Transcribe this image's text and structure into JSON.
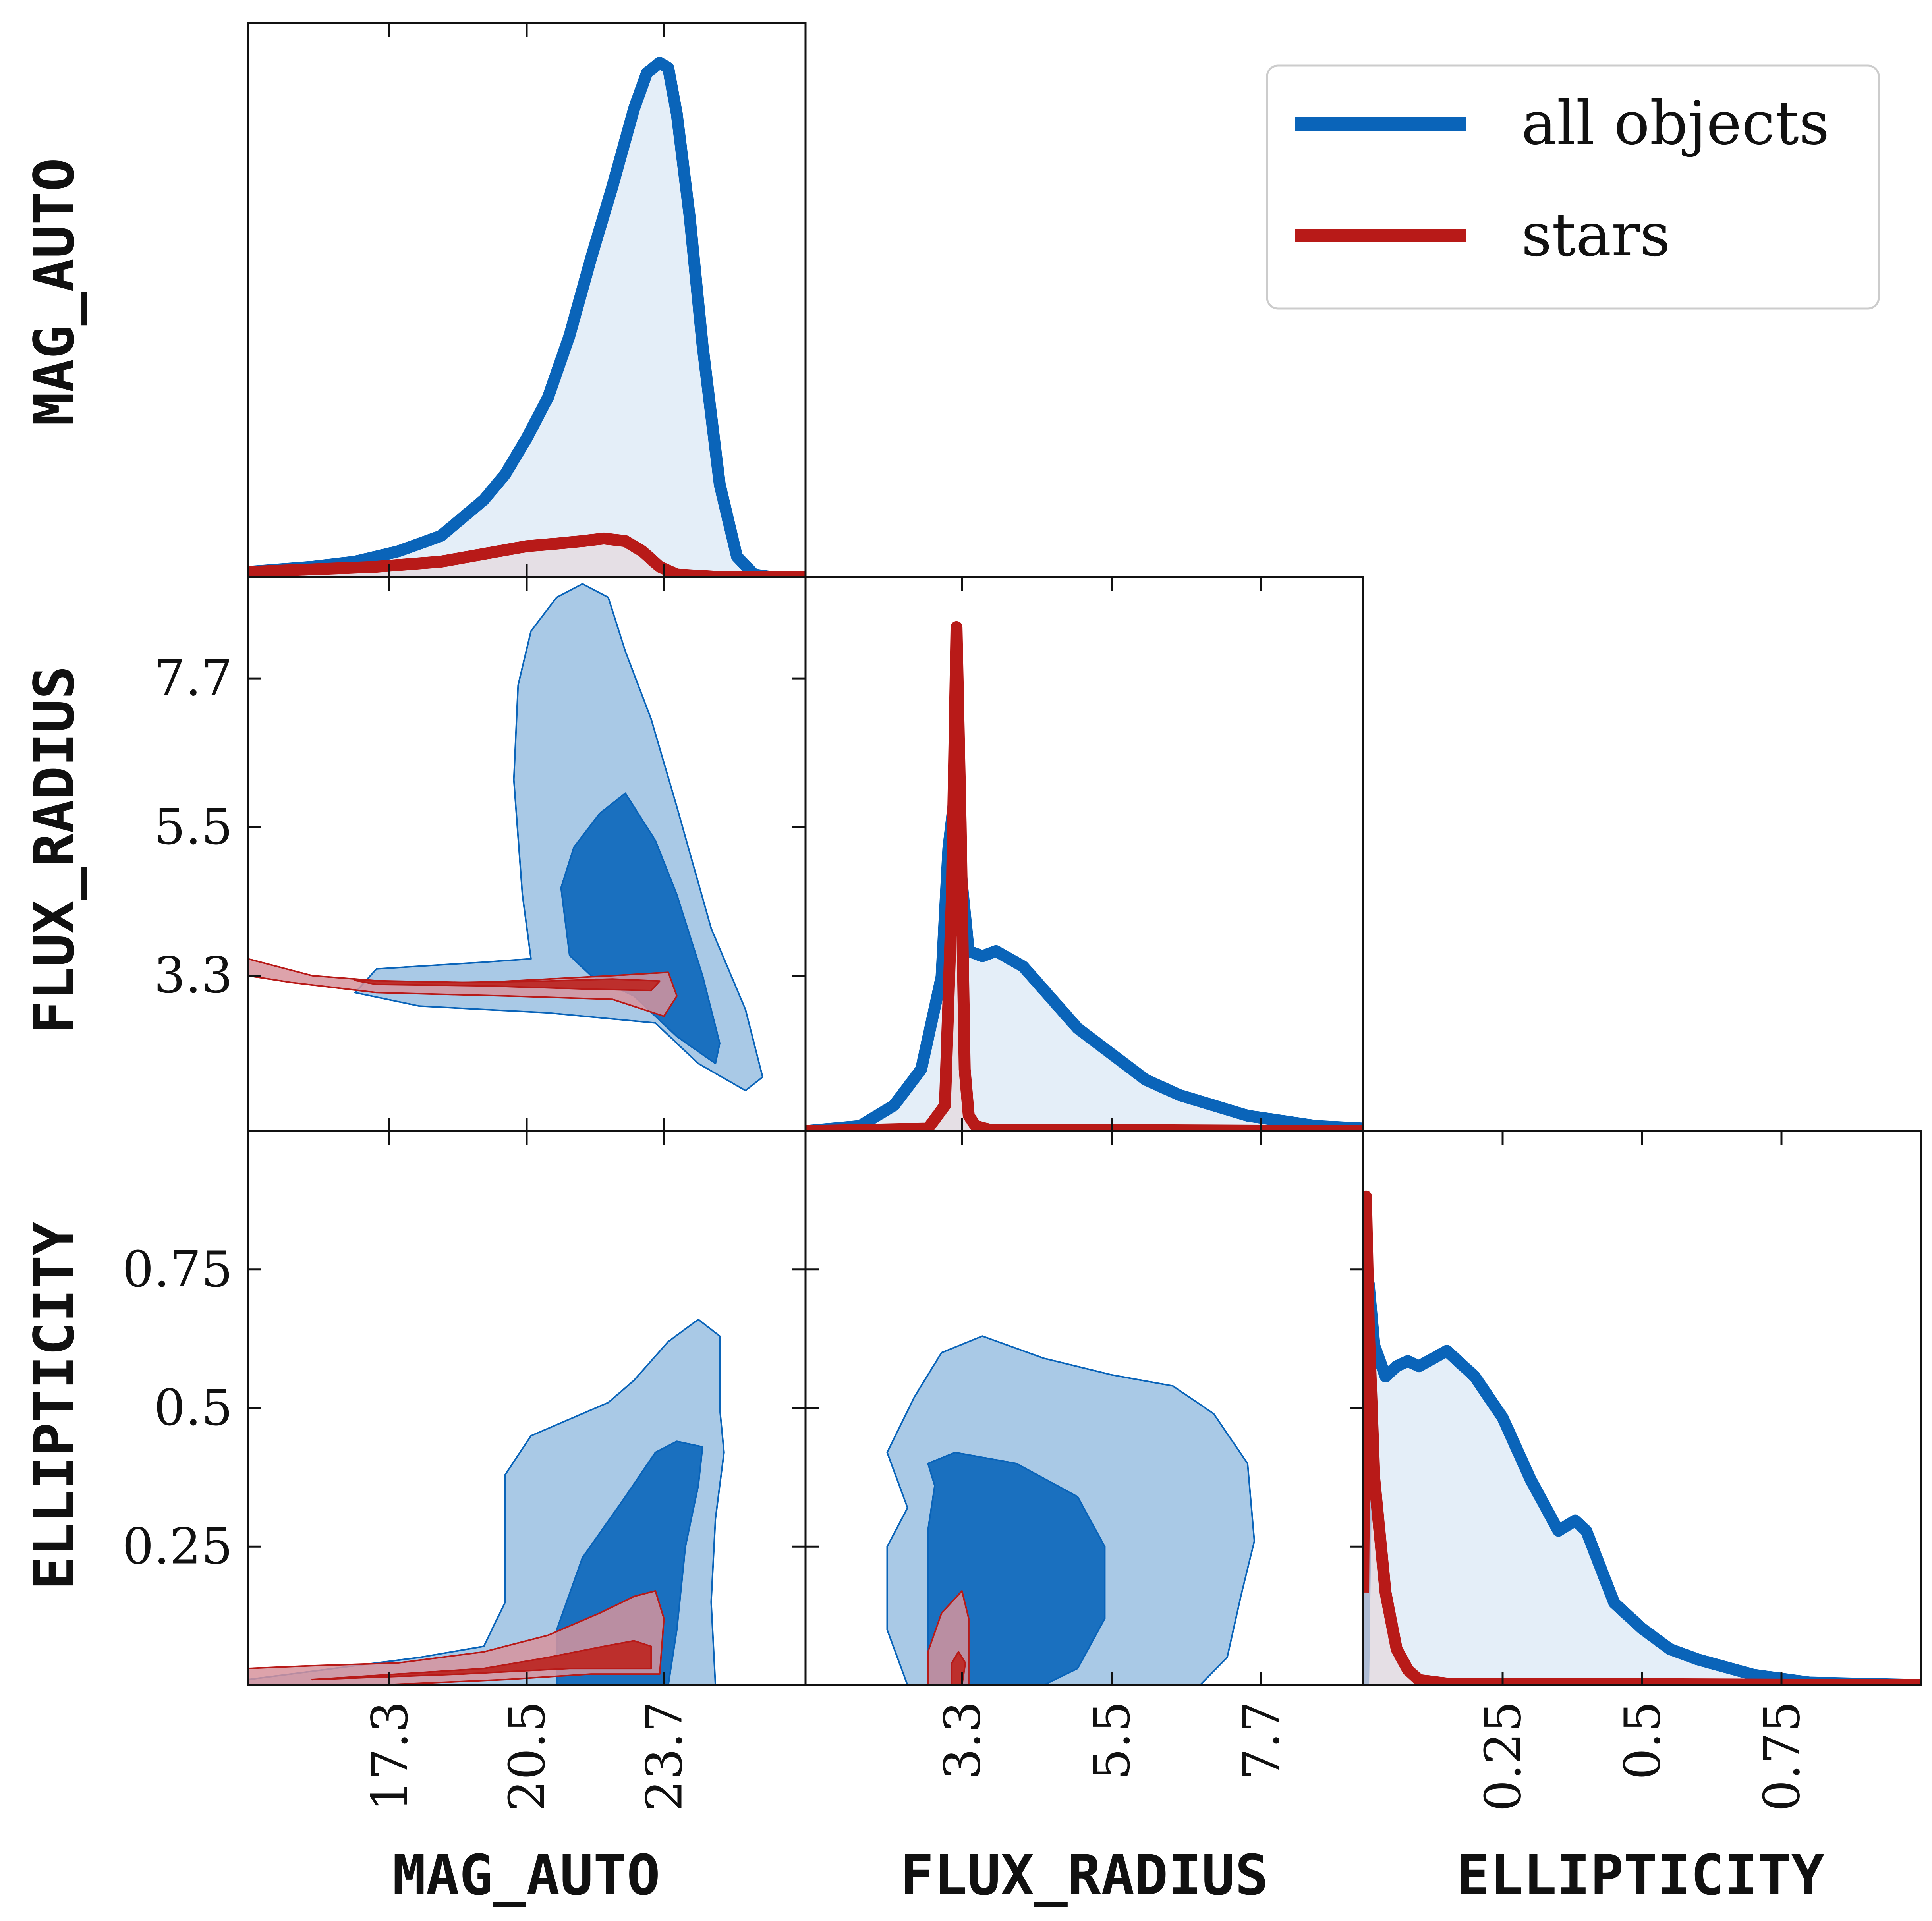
{
  "figure_type": "corner-plot",
  "colors": {
    "all_objects": "#0a64b9",
    "all_objects_fill_light": "#e4eef8",
    "all_objects_contour_outer": "#a9c9e6",
    "all_objects_contour_inner": "#1a70bf",
    "stars": "#b81a18",
    "stars_fill_light": "#e6d9df",
    "stars_contour_outer": "#d7939c",
    "stars_contour_inner": "#bd2f2c",
    "frame": "#111111"
  },
  "legend": {
    "placement": "top-right",
    "entries": [
      {
        "label": "all objects",
        "color_key": "all_objects"
      },
      {
        "label": "stars",
        "color_key": "stars"
      }
    ]
  },
  "axes_labels": {
    "mag_auto": "MAG_AUTO",
    "flux_radius": "FLUX_RADIUS",
    "ellipticity": "ELLIPTICITY"
  },
  "chart_data": {
    "type": "corner",
    "variables": [
      "MAG_AUTO",
      "FLUX_RADIUS",
      "ELLIPTICITY"
    ],
    "ranges": {
      "MAG_AUTO": [
        14.0,
        27.0
      ],
      "FLUX_RADIUS": [
        1.0,
        9.2
      ],
      "ELLIPTICITY": [
        0.0,
        1.0
      ]
    },
    "ticks": {
      "MAG_AUTO": {
        "values": [
          17.3,
          20.5,
          23.7
        ],
        "labels": [
          "17.3",
          "20.5",
          "23.7"
        ]
      },
      "FLUX_RADIUS": {
        "values": [
          3.3,
          5.5,
          7.7
        ],
        "labels": [
          "3.3",
          "5.5",
          "7.7"
        ]
      },
      "ELLIPTICITY": {
        "values": [
          0.25,
          0.5,
          0.75
        ],
        "labels": [
          "0.25",
          "0.5",
          "0.75"
        ]
      }
    },
    "marginals": {
      "MAG_AUTO": {
        "all objects": {
          "x": [
            14.0,
            15.5,
            16.5,
            17.5,
            18.5,
            19.5,
            20.0,
            20.5,
            21.0,
            21.5,
            22.0,
            22.5,
            23.0,
            23.3,
            23.6,
            23.8,
            24.0,
            24.3,
            24.6,
            25.0,
            25.4,
            25.8,
            26.2,
            27.0
          ],
          "y": [
            0.01,
            0.02,
            0.03,
            0.05,
            0.08,
            0.15,
            0.2,
            0.27,
            0.35,
            0.47,
            0.62,
            0.76,
            0.91,
            0.98,
            1.0,
            0.99,
            0.9,
            0.7,
            0.45,
            0.18,
            0.04,
            0.005,
            0.0,
            0.0
          ]
        },
        "stars": {
          "x": [
            14.0,
            15.5,
            17.0,
            18.5,
            19.5,
            20.5,
            21.2,
            21.8,
            22.3,
            22.8,
            23.2,
            23.6,
            24.0,
            25.0,
            27.0
          ],
          "y": [
            0.01,
            0.015,
            0.02,
            0.03,
            0.045,
            0.06,
            0.065,
            0.07,
            0.075,
            0.07,
            0.05,
            0.02,
            0.005,
            0.0,
            0.0
          ]
        }
      },
      "FLUX_RADIUS": {
        "all objects": {
          "x": [
            1.0,
            1.8,
            2.3,
            2.7,
            3.0,
            3.1,
            3.2,
            3.3,
            3.4,
            3.6,
            3.8,
            4.2,
            4.6,
            5.0,
            5.5,
            6.0,
            6.5,
            7.0,
            7.5,
            8.0,
            8.5,
            9.2
          ],
          "y": [
            0.0,
            0.01,
            0.05,
            0.12,
            0.3,
            0.55,
            0.66,
            0.48,
            0.35,
            0.34,
            0.35,
            0.32,
            0.26,
            0.2,
            0.15,
            0.1,
            0.07,
            0.05,
            0.03,
            0.02,
            0.01,
            0.005
          ]
        },
        "stars": {
          "x": [
            1.0,
            2.8,
            3.05,
            3.15,
            3.22,
            3.28,
            3.34,
            3.4,
            3.5,
            3.7,
            9.2
          ],
          "y": [
            0.0,
            0.005,
            0.05,
            0.45,
            0.98,
            0.6,
            0.12,
            0.03,
            0.01,
            0.003,
            0.0
          ]
        }
      },
      "ELLIPTICITY": {
        "all objects": {
          "x": [
            0.0,
            0.01,
            0.02,
            0.04,
            0.06,
            0.08,
            0.1,
            0.15,
            0.2,
            0.25,
            0.3,
            0.35,
            0.38,
            0.4,
            0.45,
            0.5,
            0.55,
            0.6,
            0.7,
            0.8,
            1.0
          ],
          "y": [
            0.0,
            0.78,
            0.66,
            0.6,
            0.62,
            0.63,
            0.62,
            0.65,
            0.6,
            0.52,
            0.4,
            0.3,
            0.32,
            0.3,
            0.16,
            0.11,
            0.07,
            0.05,
            0.02,
            0.005,
            0.0
          ]
        },
        "stars": {
          "x": [
            0.0,
            0.005,
            0.01,
            0.02,
            0.04,
            0.06,
            0.08,
            0.1,
            0.15,
            1.0
          ],
          "y": [
            0.18,
            0.95,
            0.7,
            0.4,
            0.18,
            0.07,
            0.03,
            0.01,
            0.003,
            0.0
          ]
        }
      }
    },
    "joint": [
      {
        "x": "MAG_AUTO",
        "y": "FLUX_RADIUS",
        "all objects": {
          "outer": [
            [
              17.0,
              3.4
            ],
            [
              19.5,
              3.5
            ],
            [
              20.6,
              3.55
            ],
            [
              20.4,
              4.5
            ],
            [
              20.2,
              6.2
            ],
            [
              20.3,
              7.6
            ],
            [
              20.6,
              8.4
            ],
            [
              21.2,
              8.9
            ],
            [
              21.8,
              9.1
            ],
            [
              22.4,
              8.9
            ],
            [
              22.8,
              8.1
            ],
            [
              23.4,
              7.1
            ],
            [
              24.0,
              5.8
            ],
            [
              24.8,
              4.0
            ],
            [
              25.6,
              2.8
            ],
            [
              26.0,
              1.8
            ],
            [
              25.6,
              1.6
            ],
            [
              24.5,
              2.0
            ],
            [
              23.5,
              2.6
            ],
            [
              21.0,
              2.75
            ],
            [
              18.0,
              2.85
            ],
            [
              16.5,
              3.05
            ]
          ],
          "inner": [
            [
              21.5,
              3.6
            ],
            [
              21.3,
              4.6
            ],
            [
              21.6,
              5.2
            ],
            [
              22.2,
              5.7
            ],
            [
              22.8,
              6.0
            ],
            [
              23.5,
              5.3
            ],
            [
              24.0,
              4.5
            ],
            [
              24.6,
              3.3
            ],
            [
              25.0,
              2.3
            ],
            [
              24.9,
              2.0
            ],
            [
              24.0,
              2.4
            ],
            [
              23.0,
              3.0
            ],
            [
              22.0,
              3.3
            ]
          ]
        },
        "stars": {
          "outer": [
            [
              14.0,
              3.55
            ],
            [
              15.5,
              3.3
            ],
            [
              17.5,
              3.2
            ],
            [
              19.5,
              3.2
            ],
            [
              21.0,
              3.25
            ],
            [
              22.5,
              3.3
            ],
            [
              23.8,
              3.35
            ],
            [
              24.0,
              3.0
            ],
            [
              23.7,
              2.7
            ],
            [
              22.5,
              2.95
            ],
            [
              20.0,
              3.0
            ],
            [
              17.0,
              3.05
            ],
            [
              15.0,
              3.2
            ],
            [
              14.0,
              3.3
            ]
          ],
          "inner": [
            [
              16.5,
              3.23
            ],
            [
              19.0,
              3.2
            ],
            [
              21.0,
              3.22
            ],
            [
              22.5,
              3.25
            ],
            [
              23.6,
              3.22
            ],
            [
              23.4,
              3.08
            ],
            [
              22.0,
              3.1
            ],
            [
              19.5,
              3.15
            ],
            [
              17.0,
              3.17
            ]
          ]
        }
      },
      {
        "x": "MAG_AUTO",
        "y": "ELLIPTICITY",
        "all objects": {
          "outer": [
            [
              14.0,
              0.01
            ],
            [
              16.0,
              0.03
            ],
            [
              18.0,
              0.05
            ],
            [
              19.5,
              0.07
            ],
            [
              20.0,
              0.15
            ],
            [
              20.0,
              0.38
            ],
            [
              20.6,
              0.45
            ],
            [
              21.5,
              0.48
            ],
            [
              22.4,
              0.51
            ],
            [
              23.0,
              0.55
            ],
            [
              23.8,
              0.62
            ],
            [
              24.5,
              0.66
            ],
            [
              25.0,
              0.63
            ],
            [
              25.0,
              0.5
            ],
            [
              25.1,
              0.42
            ],
            [
              24.9,
              0.3
            ],
            [
              24.8,
              0.15
            ],
            [
              24.9,
              0.0
            ],
            [
              20.5,
              0.0
            ],
            [
              17.0,
              0.0
            ],
            [
              14.0,
              0.0
            ]
          ],
          "inner": [
            [
              21.2,
              0.0
            ],
            [
              21.2,
              0.1
            ],
            [
              21.8,
              0.23
            ],
            [
              22.8,
              0.34
            ],
            [
              23.5,
              0.42
            ],
            [
              24.0,
              0.44
            ],
            [
              24.6,
              0.43
            ],
            [
              24.5,
              0.36
            ],
            [
              24.2,
              0.25
            ],
            [
              24.0,
              0.1
            ],
            [
              23.8,
              0.0
            ]
          ]
        },
        "stars": {
          "outer": [
            [
              14.0,
              0.03
            ],
            [
              15.5,
              0.035
            ],
            [
              17.5,
              0.04
            ],
            [
              19.5,
              0.06
            ],
            [
              21.0,
              0.09
            ],
            [
              22.2,
              0.13
            ],
            [
              23.0,
              0.16
            ],
            [
              23.5,
              0.17
            ],
            [
              23.7,
              0.12
            ],
            [
              23.6,
              0.02
            ],
            [
              22.0,
              0.02
            ],
            [
              20.0,
              0.01
            ],
            [
              17.0,
              0.0
            ],
            [
              14.0,
              0.0
            ]
          ],
          "inner": [
            [
              15.5,
              0.01
            ],
            [
              17.5,
              0.02
            ],
            [
              19.5,
              0.03
            ],
            [
              21.0,
              0.05
            ],
            [
              22.3,
              0.07
            ],
            [
              23.0,
              0.08
            ],
            [
              23.4,
              0.07
            ],
            [
              23.4,
              0.03
            ],
            [
              21.5,
              0.03
            ],
            [
              19.0,
              0.02
            ]
          ]
        }
      },
      {
        "x": "FLUX_RADIUS",
        "y": "ELLIPTICITY",
        "all objects": {
          "outer": [
            [
              2.2,
              0.1
            ],
            [
              2.2,
              0.25
            ],
            [
              2.5,
              0.32
            ],
            [
              2.2,
              0.42
            ],
            [
              2.6,
              0.52
            ],
            [
              3.0,
              0.6
            ],
            [
              3.6,
              0.63
            ],
            [
              4.5,
              0.59
            ],
            [
              5.5,
              0.56
            ],
            [
              6.4,
              0.54
            ],
            [
              7.0,
              0.49
            ],
            [
              7.5,
              0.4
            ],
            [
              7.6,
              0.26
            ],
            [
              7.4,
              0.16
            ],
            [
              7.2,
              0.05
            ],
            [
              6.8,
              0.0
            ],
            [
              5.0,
              0.0
            ],
            [
              2.5,
              0.0
            ]
          ],
          "inner": [
            [
              2.8,
              0.0
            ],
            [
              2.8,
              0.28
            ],
            [
              2.9,
              0.36
            ],
            [
              2.8,
              0.4
            ],
            [
              3.2,
              0.42
            ],
            [
              4.1,
              0.4
            ],
            [
              5.0,
              0.34
            ],
            [
              5.4,
              0.25
            ],
            [
              5.4,
              0.12
            ],
            [
              5.0,
              0.03
            ],
            [
              4.5,
              0.0
            ]
          ]
        },
        "stars": {
          "outer": [
            [
              2.8,
              0.0
            ],
            [
              2.8,
              0.06
            ],
            [
              3.0,
              0.13
            ],
            [
              3.3,
              0.17
            ],
            [
              3.4,
              0.12
            ],
            [
              3.4,
              0.0
            ]
          ],
          "inner": [
            [
              3.15,
              0.0
            ],
            [
              3.15,
              0.04
            ],
            [
              3.25,
              0.06
            ],
            [
              3.35,
              0.04
            ],
            [
              3.3,
              0.0
            ]
          ]
        }
      }
    ]
  }
}
